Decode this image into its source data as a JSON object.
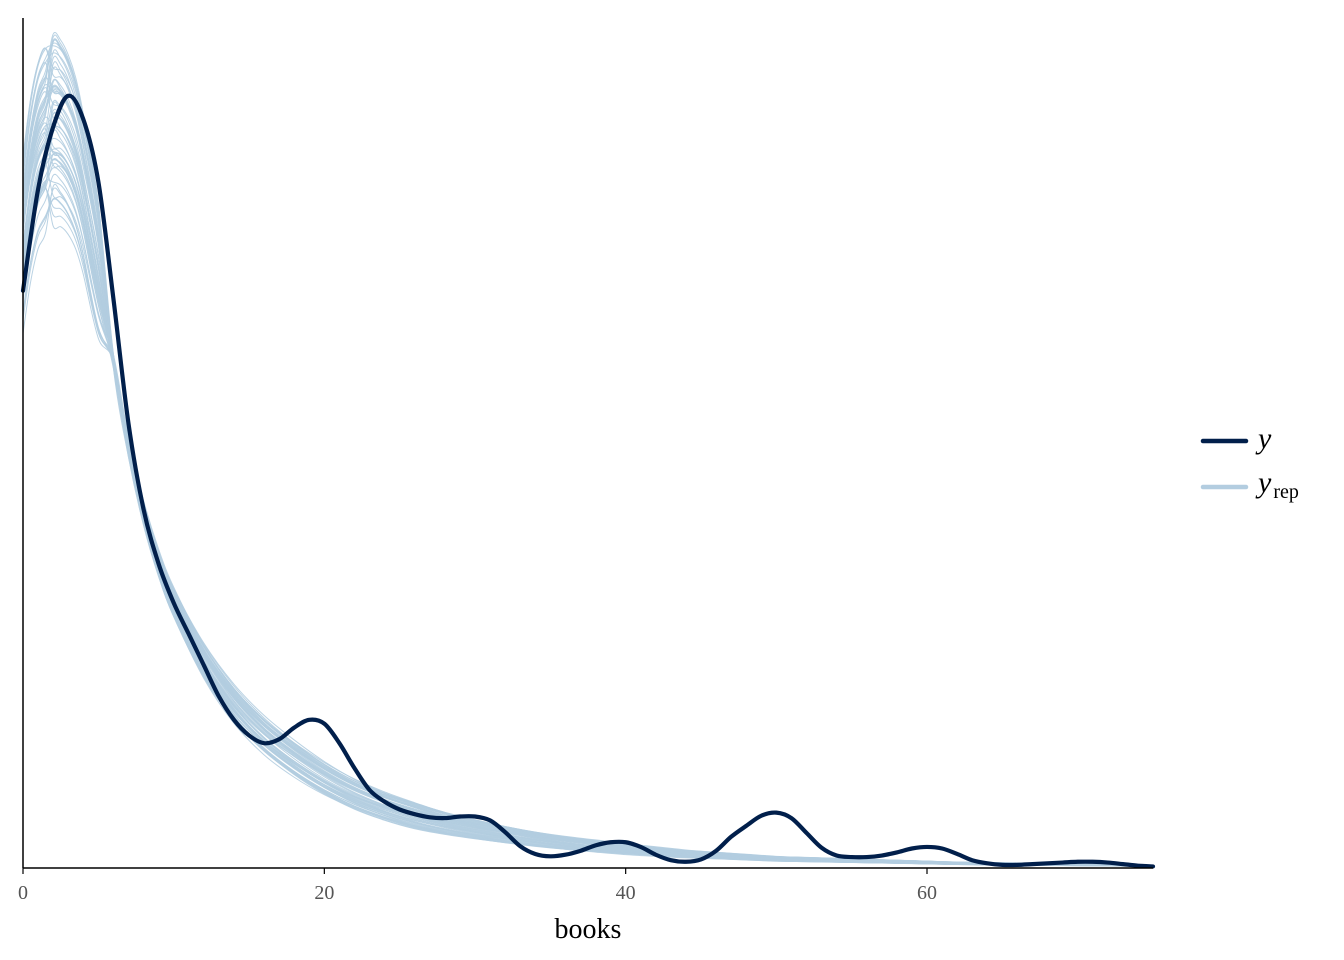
{
  "chart_data": {
    "type": "line",
    "xlabel": "books",
    "ylabel": "",
    "xlim": [
      0,
      75
    ],
    "ylim": [
      0,
      1
    ],
    "x_ticks": [
      0,
      20,
      40,
      60
    ],
    "x_tick_labels": [
      "0",
      "20",
      "40",
      "60"
    ],
    "y_ticks_shown": false,
    "grid": false,
    "legend": {
      "placement": "right",
      "entries": [
        {
          "key": "y",
          "label": "y",
          "subscript": "",
          "color": "#011f4b"
        },
        {
          "key": "yrep",
          "label": "y",
          "subscript": "rep",
          "color": "#b3cde0"
        }
      ]
    },
    "observed": {
      "name": "y",
      "color": "#011f4b",
      "x": [
        0,
        1,
        2,
        3,
        4,
        5,
        6,
        7,
        8,
        9,
        10,
        11,
        12,
        13,
        14,
        15,
        16,
        17,
        18,
        19,
        20,
        21,
        22,
        23,
        24,
        25,
        26,
        27,
        28,
        29,
        30,
        31,
        32,
        33,
        34,
        35,
        36,
        37,
        38,
        39,
        40,
        41,
        42,
        43,
        44,
        45,
        46,
        47,
        48,
        49,
        50,
        51,
        52,
        53,
        54,
        55,
        56,
        57,
        58,
        59,
        60,
        61,
        62,
        63,
        64,
        65,
        66,
        67,
        68,
        69,
        70,
        71,
        72,
        73,
        74,
        75
      ],
      "y": [
        0.74,
        0.87,
        0.95,
        0.99,
        0.96,
        0.88,
        0.73,
        0.57,
        0.46,
        0.39,
        0.34,
        0.3,
        0.26,
        0.22,
        0.19,
        0.17,
        0.16,
        0.165,
        0.18,
        0.19,
        0.185,
        0.16,
        0.128,
        0.1,
        0.085,
        0.075,
        0.069,
        0.065,
        0.064,
        0.066,
        0.066,
        0.061,
        0.046,
        0.028,
        0.018,
        0.015,
        0.017,
        0.022,
        0.029,
        0.033,
        0.033,
        0.027,
        0.017,
        0.01,
        0.008,
        0.011,
        0.022,
        0.04,
        0.054,
        0.067,
        0.071,
        0.064,
        0.045,
        0.026,
        0.016,
        0.014,
        0.014,
        0.016,
        0.02,
        0.025,
        0.027,
        0.025,
        0.018,
        0.01,
        0.006,
        0.004,
        0.004,
        0.005,
        0.006,
        0.007,
        0.008,
        0.008,
        0.007,
        0.005,
        0.003,
        0.002
      ]
    },
    "replicates": {
      "name": "yrep",
      "color": "#b3cde0",
      "count": 60,
      "x": [
        0,
        0.5,
        1,
        1.5,
        2,
        2.5,
        3,
        3.5,
        4,
        5,
        6,
        7,
        8,
        9,
        10,
        12,
        14,
        16,
        18,
        20,
        22,
        24,
        26,
        28,
        30,
        32,
        34,
        36,
        38,
        40,
        42,
        44,
        46,
        48,
        50,
        52,
        54,
        56,
        58,
        60,
        62,
        64,
        66,
        68,
        70,
        72,
        75
      ],
      "y_mean": [
        0.81,
        0.88,
        0.925,
        0.945,
        0.955,
        0.95,
        0.935,
        0.91,
        0.87,
        0.77,
        0.65,
        0.54,
        0.455,
        0.39,
        0.34,
        0.265,
        0.21,
        0.17,
        0.14,
        0.115,
        0.095,
        0.08,
        0.068,
        0.058,
        0.05,
        0.043,
        0.037,
        0.032,
        0.028,
        0.024,
        0.021,
        0.018,
        0.016,
        0.014,
        0.012,
        0.011,
        0.01,
        0.009,
        0.008,
        0.007,
        0.006,
        0.0055,
        0.005,
        0.0045,
        0.004,
        0.0035,
        0.003
      ]
    }
  }
}
